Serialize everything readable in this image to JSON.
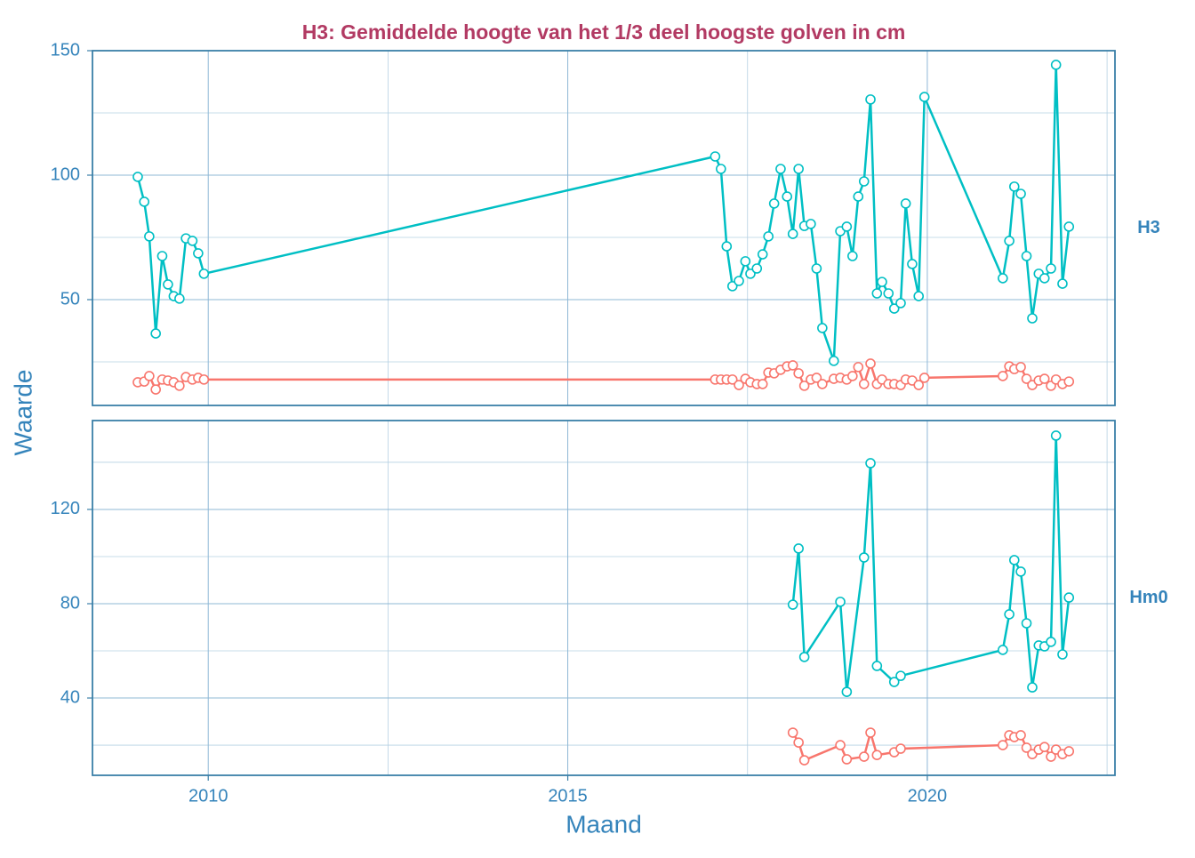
{
  "chart_data": {
    "type": "line",
    "title": "H3: Gemiddelde hoogte van het 1/3 deel hoogste golven in cm",
    "xlabel": "Maand",
    "ylabel": "Waarde",
    "xlim": [
      2008.39,
      2022.61
    ],
    "xticks": [
      2010,
      2015,
      2020
    ],
    "x_minor_ticks": [
      2012.5,
      2017.5,
      2022.5
    ],
    "grid": true,
    "panels": [
      {
        "label": "H3",
        "ylim": [
          7.5,
          150
        ],
        "yticks": [
          50,
          100,
          150
        ],
        "y_minor_ticks": [
          25,
          75,
          125
        ],
        "x": [
          2009.02,
          2009.11,
          2009.18,
          2009.27,
          2009.36,
          2009.44,
          2009.52,
          2009.6,
          2009.69,
          2009.78,
          2009.86,
          2009.94,
          2017.05,
          2017.13,
          2017.21,
          2017.29,
          2017.38,
          2017.47,
          2017.54,
          2017.63,
          2017.71,
          2017.79,
          2017.87,
          2017.96,
          2018.05,
          2018.13,
          2018.21,
          2018.29,
          2018.38,
          2018.46,
          2018.54,
          2018.7,
          2018.79,
          2018.88,
          2018.96,
          2019.04,
          2019.12,
          2019.21,
          2019.3,
          2019.37,
          2019.46,
          2019.54,
          2019.63,
          2019.7,
          2019.79,
          2019.88,
          2019.96,
          2021.05,
          2021.14,
          2021.21,
          2021.3,
          2021.38,
          2021.46,
          2021.55,
          2021.63,
          2021.72,
          2021.79,
          2021.88,
          2021.97
        ],
        "series": [
          {
            "color": "#00bfc4",
            "values": [
              99.3,
              89.3,
              75.4,
              36.4,
              67.5,
              56.1,
              51.4,
              50.4,
              74.6,
              73.6,
              68.6,
              60.4,
              107.5,
              102.5,
              71.4,
              55.4,
              57.5,
              65.4,
              60.4,
              62.5,
              68.2,
              75.4,
              88.6,
              102.5,
              91.4,
              76.4,
              102.5,
              79.6,
              80.4,
              62.5,
              38.6,
              25.4,
              77.5,
              79.3,
              67.5,
              91.4,
              97.5,
              130.4,
              52.5,
              57.1,
              52.5,
              46.4,
              48.6,
              88.6,
              64.3,
              51.4,
              131.4,
              58.6,
              73.6,
              95.4,
              92.5,
              67.5,
              42.5,
              60.4,
              58.6,
              62.5,
              144.3,
              56.4,
              79.3
            ]
          },
          {
            "color": "#f8766d",
            "values": [
              16.8,
              17.1,
              19.3,
              13.9,
              17.9,
              17.5,
              16.8,
              15.4,
              18.9,
              17.9,
              18.6,
              17.9,
              17.9,
              17.9,
              17.9,
              17.9,
              15.7,
              18.2,
              16.8,
              16.1,
              16.1,
              20.7,
              20.4,
              21.8,
              23.2,
              23.6,
              20.4,
              15.4,
              17.9,
              18.6,
              16.1,
              18.2,
              18.6,
              17.9,
              19.3,
              22.9,
              16.1,
              24.3,
              16.1,
              17.9,
              16.1,
              16.1,
              15.7,
              17.9,
              17.5,
              15.7,
              18.6,
              19.3,
              23.2,
              22.1,
              22.9,
              18.2,
              15.7,
              17.5,
              18.2,
              15.4,
              17.9,
              16.1,
              17.1
            ]
          }
        ]
      },
      {
        "label": "Hm0",
        "ylim": [
          7.2,
          157.7
        ],
        "yticks": [
          40,
          80,
          120
        ],
        "y_minor_ticks": [
          20,
          60,
          100,
          140
        ],
        "x": [
          2018.13,
          2018.21,
          2018.29,
          2018.79,
          2018.88,
          2019.12,
          2019.21,
          2019.3,
          2019.54,
          2019.63,
          2021.05,
          2021.14,
          2021.21,
          2021.3,
          2021.38,
          2021.46,
          2021.55,
          2021.63,
          2021.72,
          2021.79,
          2021.88,
          2021.97
        ],
        "series": [
          {
            "color": "#00bfc4",
            "values": [
              79.6,
              103.4,
              57.4,
              80.8,
              42.6,
              99.6,
              139.6,
              53.6,
              46.8,
              49.4,
              60.4,
              75.5,
              98.5,
              93.6,
              71.7,
              44.5,
              62.3,
              61.9,
              63.8,
              151.3,
              58.5,
              82.6
            ]
          },
          {
            "color": "#f8766d",
            "values": [
              25.3,
              21.1,
              13.6,
              20.0,
              14.0,
              15.1,
              25.3,
              15.8,
              17.0,
              18.5,
              20.0,
              24.2,
              23.4,
              24.2,
              18.9,
              16.2,
              18.1,
              19.2,
              15.1,
              18.1,
              16.2,
              17.4
            ]
          }
        ]
      }
    ]
  }
}
